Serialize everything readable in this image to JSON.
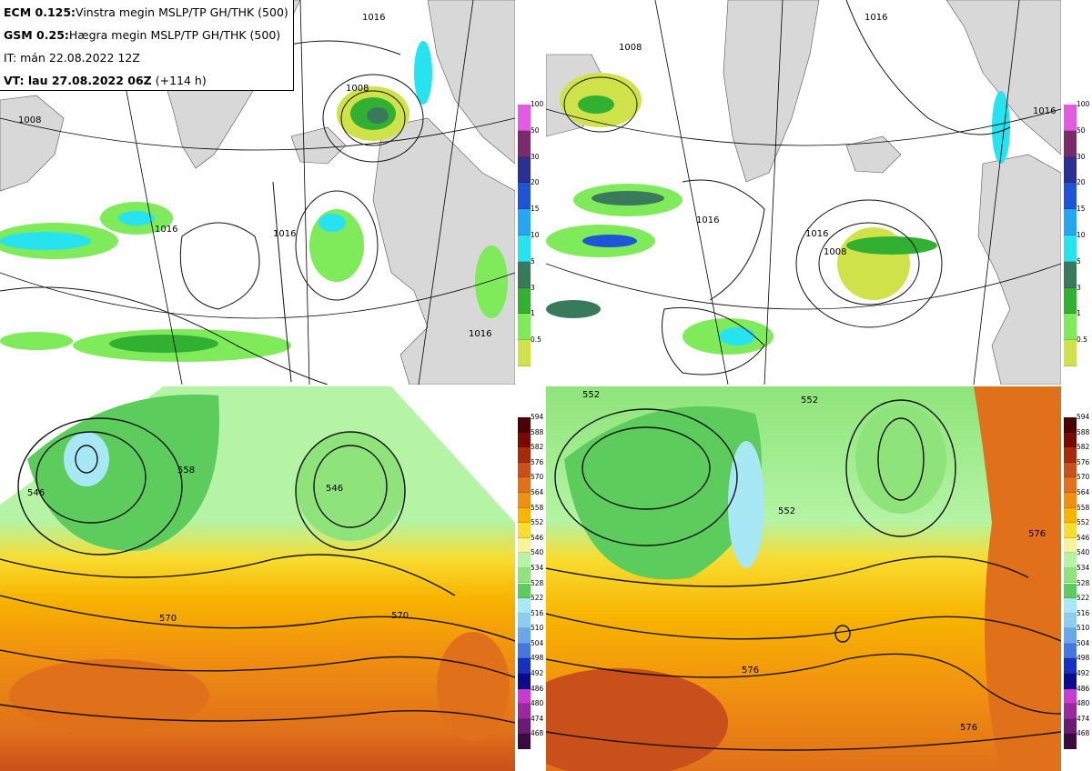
{
  "header": {
    "line1_bold": "ECM 0.125:",
    "line1_text": "Vinstra megin MSLP/TP GH/THK (500)",
    "line2_bold": "GSM 0.25:",
    "line2_text": "Hægra megin MSLP/TP GH/THK (500)",
    "line3_text": "IT: mán 22.08.2022 12Z",
    "line4_bold": "VT: lau 27.08.2022 06Z",
    "line4_text": "(+114 h)"
  },
  "precip_scale": {
    "labels": [
      "100",
      "50",
      "30",
      "20",
      "15",
      "10",
      "5",
      "3",
      "1",
      "0.5"
    ],
    "colors": [
      "#e35ae3",
      "#7b2a6a",
      "#2c3094",
      "#1d55d6",
      "#26a5f0",
      "#27e3f0",
      "#3a7a5c",
      "#31b031",
      "#7fea5a",
      "#cfe24a"
    ]
  },
  "height_scale": {
    "labels": [
      "594",
      "588",
      "582",
      "576",
      "570",
      "564",
      "558",
      "552",
      "546",
      "540",
      "534",
      "528",
      "522",
      "516",
      "510",
      "504",
      "498",
      "492",
      "486",
      "480",
      "474",
      "468"
    ],
    "colors": [
      "#4a0000",
      "#7a0a00",
      "#a82a0a",
      "#c9501a",
      "#e0701a",
      "#f09010",
      "#f8b400",
      "#f8dc30",
      "#f4f49a",
      "#b4f4a4",
      "#8ee47a",
      "#5ccc5c",
      "#a8e8f4",
      "#8ccdf0",
      "#6aa6ea",
      "#4478e0",
      "#1830c0",
      "#0a0a8c",
      "#c83ad0",
      "#9a28a0",
      "#6a1a70",
      "#3a0a40"
    ]
  },
  "panels": {
    "ecm_mslp": {
      "isobar_labels": [
        "1016",
        "1008",
        "1016",
        "1008",
        "1016",
        "1016"
      ]
    },
    "gsm_mslp": {
      "isobar_labels": [
        "1016",
        "1008",
        "1016",
        "1016",
        "1008",
        "1016"
      ]
    },
    "ecm_gh": {
      "contour_labels": [
        "546",
        "546",
        "570",
        "570",
        "558"
      ]
    },
    "gsm_gh": {
      "contour_labels": [
        "552",
        "552",
        "552",
        "576",
        "576",
        "576"
      ]
    }
  }
}
